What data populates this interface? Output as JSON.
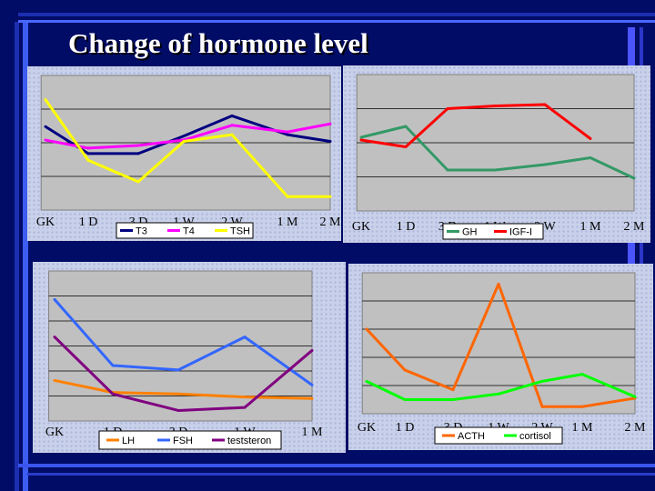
{
  "title": "Change of hormone level",
  "colors": {
    "background": "#000c66",
    "plot_area": "#c0c0c0",
    "T3": "#000080",
    "T4": "#ff00ff",
    "TSH": "#ffff00",
    "GH": "#339966",
    "IGF-I": "#ff0000",
    "LH": "#ff8000",
    "FSH": "#3366ff",
    "teststeron": "#800080",
    "ACTH": "#ff6600",
    "cortisol": "#00ff00"
  },
  "chart_data": [
    {
      "type": "line",
      "categories": [
        "GK",
        "1 D",
        "3 D",
        "1 W",
        "2 W",
        "1 M",
        "2 M"
      ],
      "ylim": [
        0,
        100
      ],
      "grid": true,
      "series": [
        {
          "name": "T3",
          "color": "#000080",
          "values": [
            62,
            42,
            42,
            55,
            70,
            56,
            51
          ]
        },
        {
          "name": "T4",
          "color": "#ff00ff",
          "values": [
            52,
            46,
            48,
            52,
            63,
            58,
            64
          ]
        },
        {
          "name": "TSH",
          "color": "#ffff00",
          "values": [
            82,
            37,
            21,
            51,
            56,
            10,
            10
          ]
        }
      ],
      "legend": "bottom"
    },
    {
      "type": "line",
      "categories": [
        "GK",
        "1 D",
        "3 D",
        "1 W",
        "2 W",
        "1 M",
        "2 M"
      ],
      "ylim": [
        0,
        100
      ],
      "grid": true,
      "series": [
        {
          "name": "GH",
          "color": "#339966",
          "values": [
            54,
            62,
            30,
            30,
            34,
            39,
            24
          ]
        },
        {
          "name": "IGF-I",
          "color": "#ff0000",
          "values": [
            52,
            47,
            75,
            77,
            78,
            53,
            null
          ]
        }
      ],
      "legend": "bottom"
    },
    {
      "type": "line",
      "categories": [
        "GK",
        "1 D",
        "3 D",
        "1 W",
        "1 M"
      ],
      "ylim": [
        0,
        100
      ],
      "grid": true,
      "series": [
        {
          "name": "LH",
          "color": "#ff8000",
          "values": [
            27,
            19,
            18,
            16,
            15
          ]
        },
        {
          "name": "FSH",
          "color": "#3366ff",
          "values": [
            81,
            37,
            34,
            56,
            24
          ]
        },
        {
          "name": "teststeron",
          "color": "#800080",
          "values": [
            56,
            18,
            7,
            9,
            47
          ]
        }
      ],
      "legend": "bottom"
    },
    {
      "type": "line",
      "categories": [
        "GK",
        "1 D",
        "3 D",
        "1 W",
        "2 W",
        "1 M",
        "2 M"
      ],
      "ylim": [
        0,
        100
      ],
      "grid": true,
      "series": [
        {
          "name": "ACTH",
          "color": "#ff6600",
          "values": [
            60,
            31,
            17,
            92,
            5,
            5,
            11
          ]
        },
        {
          "name": "cortisol",
          "color": "#00ff00",
          "values": [
            23,
            10,
            10,
            14,
            23,
            28,
            12
          ]
        }
      ],
      "legend": "bottom"
    }
  ]
}
